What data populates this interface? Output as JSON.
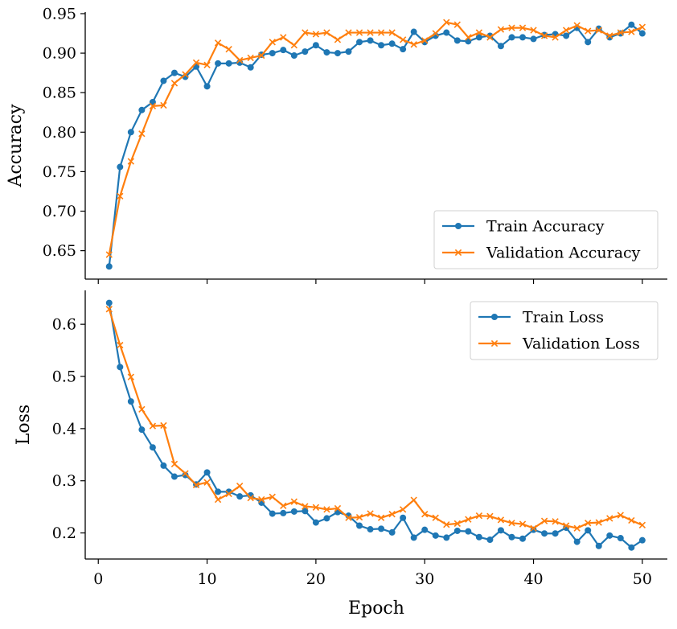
{
  "chart_data": [
    {
      "type": "line",
      "title": "",
      "xlabel": "",
      "ylabel": "Accuracy",
      "xlim": [
        -1.2,
        52.3
      ],
      "ylim": [
        0.614,
        0.952
      ],
      "yticks": [
        0.65,
        0.7,
        0.75,
        0.8,
        0.85,
        0.9,
        0.95
      ],
      "ytick_labels": [
        "0.65",
        "0.70",
        "0.75",
        "0.80",
        "0.85",
        "0.90",
        "0.95"
      ],
      "xticks": [
        0,
        10,
        20,
        30,
        40,
        50
      ],
      "show_xtick_labels": false,
      "legend_position": "lower-right",
      "x": [
        1,
        2,
        3,
        4,
        5,
        6,
        7,
        8,
        9,
        10,
        11,
        12,
        13,
        14,
        15,
        16,
        17,
        18,
        19,
        20,
        21,
        22,
        23,
        24,
        25,
        26,
        27,
        28,
        29,
        30,
        31,
        32,
        33,
        34,
        35,
        36,
        37,
        38,
        39,
        40,
        41,
        42,
        43,
        44,
        45,
        46,
        47,
        48,
        49,
        50
      ],
      "series": [
        {
          "name": "Train Accuracy",
          "marker": "circle",
          "color": "#1f77b4",
          "values": [
            0.63,
            0.756,
            0.8,
            0.828,
            0.838,
            0.865,
            0.875,
            0.87,
            0.883,
            0.858,
            0.887,
            0.887,
            0.888,
            0.882,
            0.898,
            0.9,
            0.904,
            0.897,
            0.902,
            0.91,
            0.901,
            0.9,
            0.902,
            0.914,
            0.916,
            0.91,
            0.912,
            0.905,
            0.927,
            0.914,
            0.922,
            0.926,
            0.916,
            0.915,
            0.92,
            0.922,
            0.909,
            0.92,
            0.92,
            0.918,
            0.923,
            0.924,
            0.922,
            0.932,
            0.914,
            0.931,
            0.92,
            0.925,
            0.936,
            0.925
          ]
        },
        {
          "name": "Validation Accuracy",
          "marker": "x",
          "color": "#ff7f0e",
          "values": [
            0.645,
            0.719,
            0.763,
            0.798,
            0.833,
            0.834,
            0.862,
            0.873,
            0.888,
            0.885,
            0.913,
            0.905,
            0.891,
            0.894,
            0.897,
            0.914,
            0.92,
            0.91,
            0.926,
            0.924,
            0.926,
            0.917,
            0.926,
            0.926,
            0.926,
            0.926,
            0.926,
            0.917,
            0.911,
            0.916,
            0.925,
            0.939,
            0.936,
            0.92,
            0.926,
            0.92,
            0.93,
            0.932,
            0.932,
            0.929,
            0.922,
            0.92,
            0.929,
            0.935,
            0.928,
            0.929,
            0.922,
            0.926,
            0.927,
            0.933
          ]
        }
      ]
    },
    {
      "type": "line",
      "title": "",
      "xlabel": "Epoch",
      "ylabel": "Loss",
      "xlim": [
        -1.2,
        52.3
      ],
      "ylim": [
        0.15,
        0.665
      ],
      "yticks": [
        0.2,
        0.3,
        0.4,
        0.5,
        0.6
      ],
      "ytick_labels": [
        "0.2",
        "0.3",
        "0.4",
        "0.5",
        "0.6"
      ],
      "xticks": [
        0,
        10,
        20,
        30,
        40,
        50
      ],
      "xtick_labels": [
        "0",
        "10",
        "20",
        "30",
        "40",
        "50"
      ],
      "legend_position": "upper-right",
      "x": [
        1,
        2,
        3,
        4,
        5,
        6,
        7,
        8,
        9,
        10,
        11,
        12,
        13,
        14,
        15,
        16,
        17,
        18,
        19,
        20,
        21,
        22,
        23,
        24,
        25,
        26,
        27,
        28,
        29,
        30,
        31,
        32,
        33,
        34,
        35,
        36,
        37,
        38,
        39,
        40,
        41,
        42,
        43,
        44,
        45,
        46,
        47,
        48,
        49,
        50
      ],
      "series": [
        {
          "name": "Train Loss",
          "marker": "circle",
          "color": "#1f77b4",
          "values": [
            0.641,
            0.518,
            0.452,
            0.398,
            0.364,
            0.329,
            0.308,
            0.311,
            0.293,
            0.316,
            0.279,
            0.279,
            0.27,
            0.272,
            0.258,
            0.237,
            0.238,
            0.241,
            0.242,
            0.22,
            0.228,
            0.24,
            0.233,
            0.214,
            0.207,
            0.208,
            0.201,
            0.229,
            0.191,
            0.206,
            0.195,
            0.191,
            0.204,
            0.203,
            0.192,
            0.187,
            0.205,
            0.192,
            0.189,
            0.206,
            0.199,
            0.199,
            0.21,
            0.183,
            0.205,
            0.175,
            0.195,
            0.19,
            0.172,
            0.186
          ]
        },
        {
          "name": "Validation Loss",
          "marker": "x",
          "color": "#ff7f0e",
          "values": [
            0.629,
            0.56,
            0.499,
            0.437,
            0.405,
            0.406,
            0.332,
            0.314,
            0.292,
            0.297,
            0.264,
            0.275,
            0.29,
            0.267,
            0.264,
            0.269,
            0.252,
            0.26,
            0.251,
            0.249,
            0.245,
            0.247,
            0.229,
            0.23,
            0.237,
            0.229,
            0.236,
            0.245,
            0.263,
            0.236,
            0.229,
            0.216,
            0.218,
            0.226,
            0.233,
            0.232,
            0.225,
            0.219,
            0.217,
            0.209,
            0.223,
            0.222,
            0.214,
            0.209,
            0.219,
            0.22,
            0.228,
            0.234,
            0.224,
            0.215
          ]
        }
      ]
    }
  ]
}
